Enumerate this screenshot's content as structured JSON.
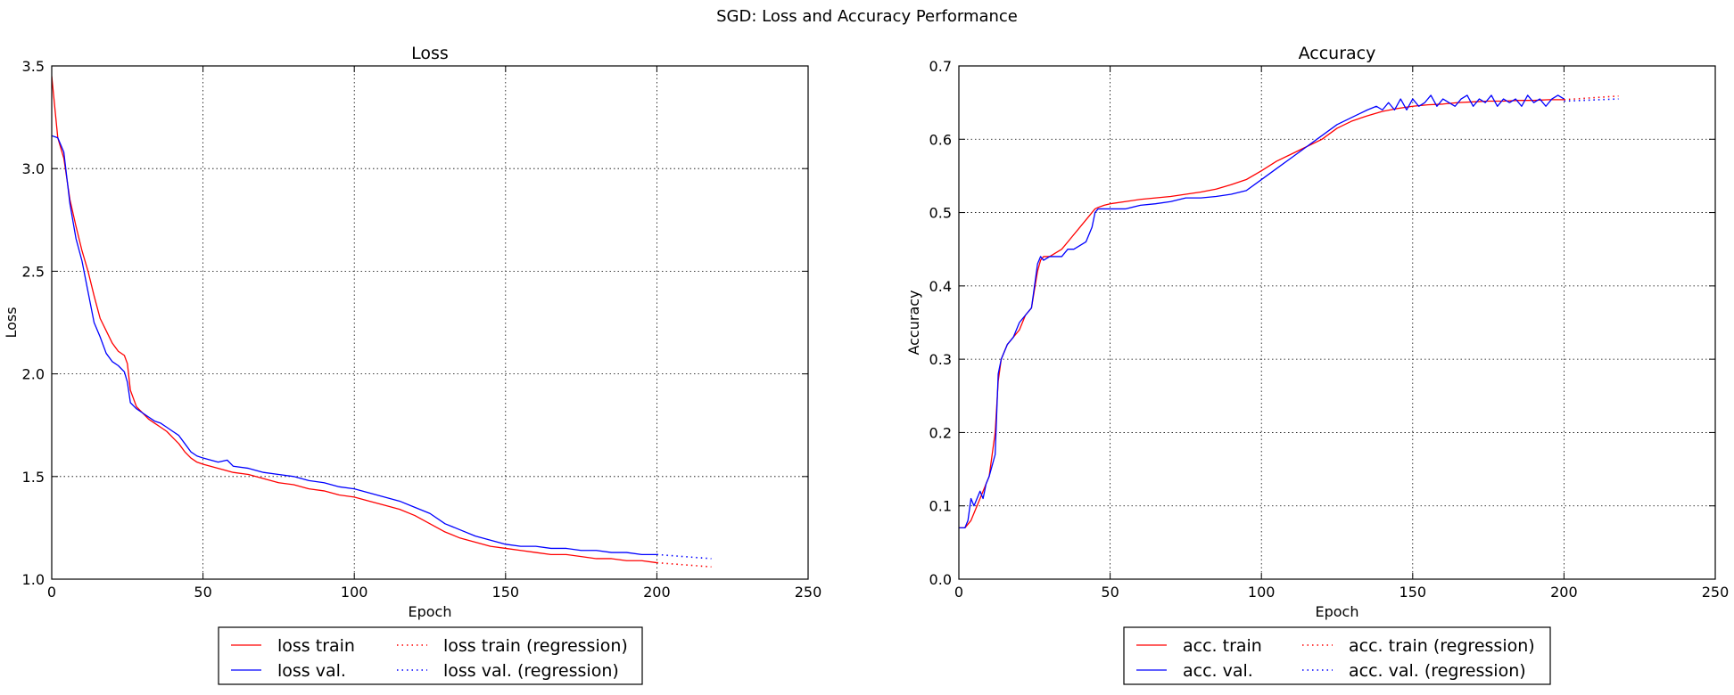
{
  "figure": {
    "title": "SGD: Loss and Accuracy Performance"
  },
  "chart_data": [
    {
      "type": "line",
      "title": "Loss",
      "xlabel": "Epoch",
      "ylabel": "Loss",
      "xlim": [
        0,
        250
      ],
      "ylim": [
        1.0,
        3.5
      ],
      "xticks": [
        0,
        50,
        100,
        150,
        200,
        250
      ],
      "yticks": [
        1.0,
        1.5,
        2.0,
        2.5,
        3.0,
        3.5
      ],
      "xtick_labels": [
        "0",
        "50",
        "100",
        "150",
        "200",
        "250"
      ],
      "ytick_labels": [
        "1.0",
        "1.5",
        "2.0",
        "2.5",
        "3.0",
        "3.5"
      ],
      "grid": true,
      "legend_position": "bottom-center (below plot)",
      "series": [
        {
          "name": "loss train",
          "color": "#ff0000",
          "style": "solid",
          "x": [
            0,
            2,
            4,
            6,
            8,
            10,
            12,
            14,
            16,
            18,
            20,
            22,
            24,
            25,
            26,
            28,
            30,
            32,
            34,
            36,
            38,
            40,
            42,
            44,
            46,
            48,
            50,
            55,
            60,
            65,
            70,
            75,
            80,
            85,
            90,
            95,
            100,
            105,
            110,
            115,
            120,
            125,
            130,
            135,
            140,
            145,
            150,
            155,
            160,
            165,
            170,
            175,
            180,
            185,
            190,
            195,
            200
          ],
          "y": [
            3.45,
            3.15,
            3.05,
            2.85,
            2.72,
            2.6,
            2.5,
            2.38,
            2.27,
            2.21,
            2.15,
            2.11,
            2.09,
            2.05,
            1.92,
            1.84,
            1.81,
            1.78,
            1.76,
            1.74,
            1.72,
            1.69,
            1.66,
            1.62,
            1.59,
            1.57,
            1.56,
            1.54,
            1.52,
            1.51,
            1.49,
            1.47,
            1.46,
            1.44,
            1.43,
            1.41,
            1.4,
            1.38,
            1.36,
            1.34,
            1.31,
            1.27,
            1.23,
            1.2,
            1.18,
            1.16,
            1.15,
            1.14,
            1.13,
            1.12,
            1.12,
            1.11,
            1.1,
            1.1,
            1.09,
            1.09,
            1.08
          ]
        },
        {
          "name": "loss val.",
          "color": "#0000ff",
          "style": "solid",
          "x": [
            0,
            2,
            4,
            6,
            8,
            10,
            12,
            14,
            16,
            18,
            20,
            22,
            24,
            25,
            26,
            28,
            30,
            32,
            34,
            36,
            38,
            40,
            42,
            44,
            46,
            48,
            50,
            55,
            58,
            60,
            65,
            70,
            75,
            80,
            85,
            90,
            95,
            100,
            105,
            110,
            115,
            120,
            125,
            130,
            135,
            140,
            145,
            150,
            155,
            160,
            165,
            170,
            175,
            180,
            185,
            190,
            195,
            200
          ],
          "y": [
            3.16,
            3.15,
            3.08,
            2.83,
            2.66,
            2.55,
            2.4,
            2.25,
            2.18,
            2.1,
            2.06,
            2.04,
            2.01,
            1.96,
            1.86,
            1.83,
            1.81,
            1.79,
            1.77,
            1.76,
            1.74,
            1.72,
            1.7,
            1.66,
            1.62,
            1.6,
            1.59,
            1.57,
            1.58,
            1.55,
            1.54,
            1.52,
            1.51,
            1.5,
            1.48,
            1.47,
            1.45,
            1.44,
            1.42,
            1.4,
            1.38,
            1.35,
            1.32,
            1.27,
            1.24,
            1.21,
            1.19,
            1.17,
            1.16,
            1.16,
            1.15,
            1.15,
            1.14,
            1.14,
            1.13,
            1.13,
            1.12,
            1.12
          ]
        },
        {
          "name": "loss train (regression)",
          "color": "#ff0000",
          "style": "dotted",
          "x": [
            200,
            218
          ],
          "y": [
            1.08,
            1.06
          ]
        },
        {
          "name": "loss val. (regression)",
          "color": "#0000ff",
          "style": "dotted",
          "x": [
            200,
            218
          ],
          "y": [
            1.12,
            1.1
          ]
        }
      ]
    },
    {
      "type": "line",
      "title": "Accuracy",
      "xlabel": "Epoch",
      "ylabel": "Accuracy",
      "xlim": [
        0,
        250
      ],
      "ylim": [
        0.0,
        0.7
      ],
      "xticks": [
        0,
        50,
        100,
        150,
        200,
        250
      ],
      "yticks": [
        0.0,
        0.1,
        0.2,
        0.3,
        0.4,
        0.5,
        0.6,
        0.7
      ],
      "xtick_labels": [
        "0",
        "50",
        "100",
        "150",
        "200",
        "250"
      ],
      "ytick_labels": [
        "0.0",
        "0.1",
        "0.2",
        "0.3",
        "0.4",
        "0.5",
        "0.6",
        "0.7"
      ],
      "grid": true,
      "legend_position": "bottom-center (below plot)",
      "series": [
        {
          "name": "acc. train",
          "color": "#ff0000",
          "style": "solid",
          "x": [
            0,
            2,
            4,
            6,
            8,
            10,
            12,
            13,
            14,
            16,
            18,
            20,
            22,
            24,
            26,
            27,
            28,
            30,
            32,
            34,
            36,
            38,
            40,
            42,
            44,
            45,
            46,
            48,
            50,
            55,
            60,
            65,
            70,
            75,
            80,
            85,
            90,
            95,
            100,
            105,
            110,
            115,
            120,
            125,
            130,
            135,
            140,
            145,
            150,
            155,
            160,
            165,
            170,
            175,
            180,
            185,
            190,
            195,
            200
          ],
          "y": [
            0.07,
            0.07,
            0.08,
            0.1,
            0.12,
            0.14,
            0.2,
            0.27,
            0.3,
            0.32,
            0.33,
            0.34,
            0.36,
            0.37,
            0.42,
            0.435,
            0.44,
            0.44,
            0.445,
            0.45,
            0.46,
            0.47,
            0.48,
            0.49,
            0.5,
            0.505,
            0.507,
            0.51,
            0.512,
            0.515,
            0.518,
            0.52,
            0.522,
            0.525,
            0.528,
            0.532,
            0.538,
            0.545,
            0.557,
            0.57,
            0.58,
            0.59,
            0.6,
            0.615,
            0.625,
            0.632,
            0.638,
            0.642,
            0.645,
            0.647,
            0.648,
            0.65,
            0.651,
            0.652,
            0.652,
            0.653,
            0.653,
            0.654,
            0.654
          ]
        },
        {
          "name": "acc. val.",
          "color": "#0000ff",
          "style": "solid",
          "x": [
            0,
            2,
            3,
            4,
            5,
            6,
            7,
            8,
            9,
            10,
            12,
            13,
            14,
            16,
            18,
            20,
            22,
            24,
            26,
            27,
            28,
            30,
            32,
            34,
            36,
            38,
            40,
            42,
            44,
            45,
            46,
            48,
            50,
            55,
            60,
            65,
            70,
            75,
            80,
            85,
            90,
            95,
            100,
            105,
            110,
            115,
            120,
            125,
            130,
            135,
            138,
            140,
            142,
            144,
            146,
            148,
            150,
            152,
            154,
            156,
            158,
            160,
            162,
            164,
            166,
            168,
            170,
            172,
            174,
            176,
            178,
            180,
            182,
            184,
            186,
            188,
            190,
            192,
            194,
            196,
            198,
            200
          ],
          "y": [
            0.07,
            0.07,
            0.08,
            0.11,
            0.1,
            0.11,
            0.12,
            0.11,
            0.13,
            0.14,
            0.17,
            0.28,
            0.3,
            0.32,
            0.33,
            0.35,
            0.36,
            0.37,
            0.43,
            0.44,
            0.435,
            0.44,
            0.44,
            0.44,
            0.45,
            0.45,
            0.455,
            0.46,
            0.48,
            0.5,
            0.505,
            0.505,
            0.505,
            0.505,
            0.51,
            0.512,
            0.515,
            0.52,
            0.52,
            0.522,
            0.525,
            0.53,
            0.545,
            0.56,
            0.575,
            0.59,
            0.605,
            0.62,
            0.63,
            0.64,
            0.645,
            0.64,
            0.65,
            0.64,
            0.655,
            0.64,
            0.655,
            0.645,
            0.65,
            0.66,
            0.645,
            0.655,
            0.65,
            0.645,
            0.655,
            0.66,
            0.645,
            0.655,
            0.65,
            0.66,
            0.645,
            0.655,
            0.65,
            0.655,
            0.645,
            0.66,
            0.65,
            0.655,
            0.645,
            0.655,
            0.66,
            0.655
          ]
        },
        {
          "name": "acc. train (regression)",
          "color": "#ff0000",
          "style": "dotted",
          "x": [
            200,
            218
          ],
          "y": [
            0.654,
            0.659
          ]
        },
        {
          "name": "acc. val. (regression)",
          "color": "#0000ff",
          "style": "dotted",
          "x": [
            200,
            218
          ],
          "y": [
            0.652,
            0.655
          ]
        }
      ]
    }
  ]
}
